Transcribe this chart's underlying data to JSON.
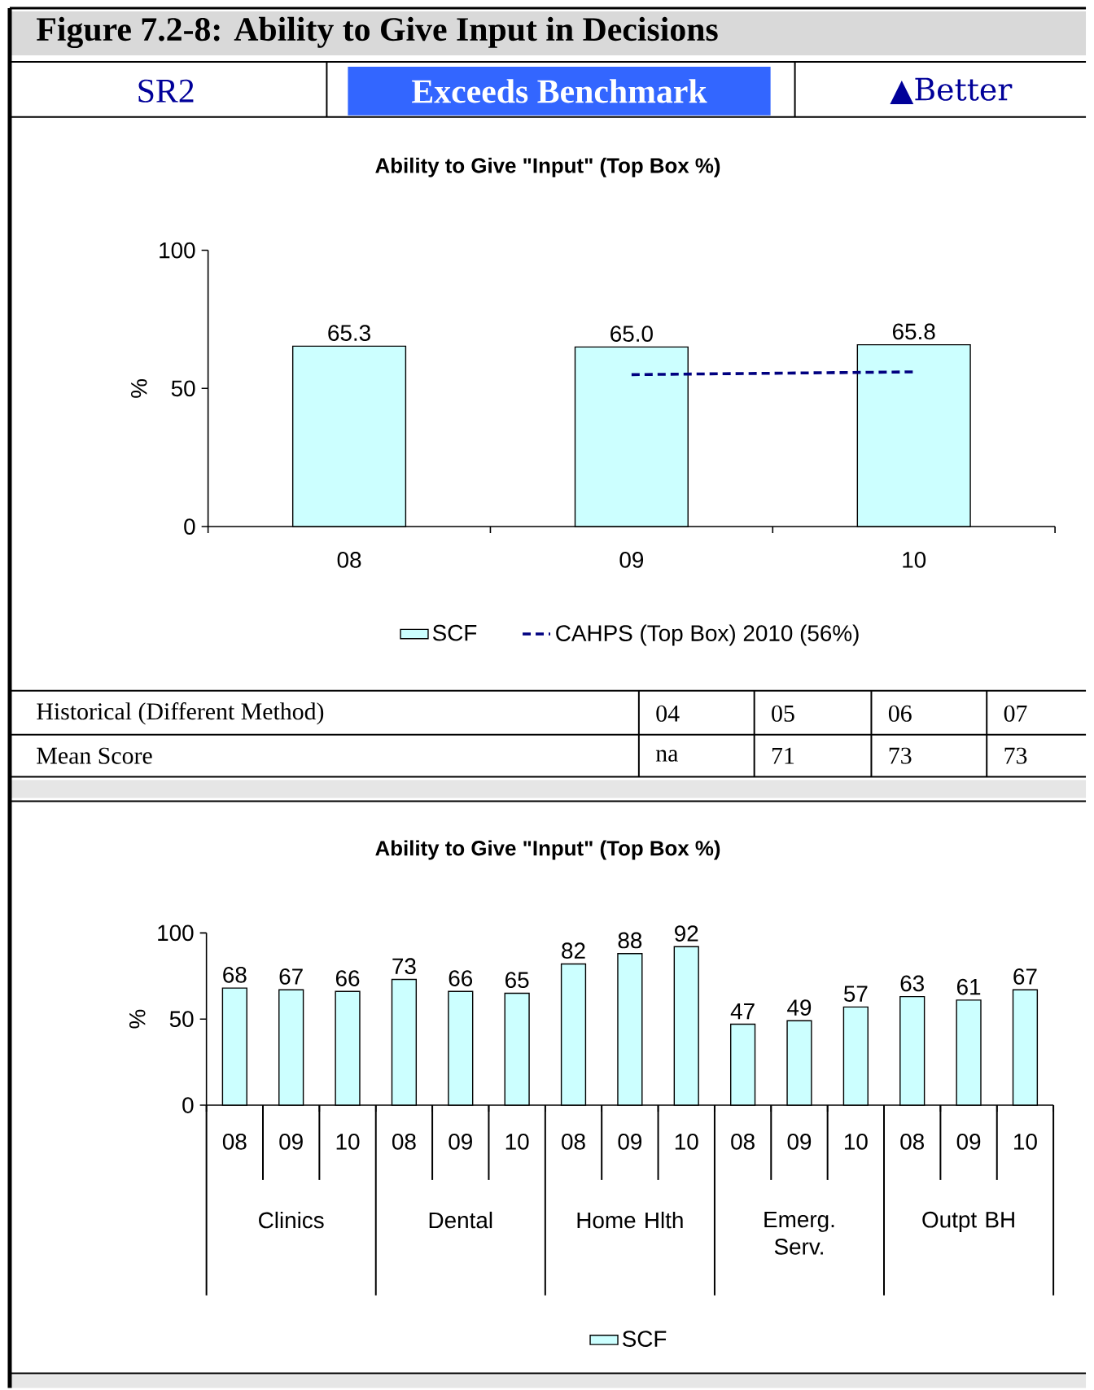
{
  "chart_data": [
    {
      "type": "bar",
      "title": "Ability to Give \"Input\" (Top Box %)",
      "ylabel": "%",
      "categories": [
        "08",
        "09",
        "10"
      ],
      "series": [
        {
          "name": "SCF",
          "color": "#ccffff",
          "values": [
            65.3,
            65.0,
            65.8
          ],
          "value_labels": [
            "65.3",
            "65.0",
            "65.8"
          ]
        },
        {
          "name": "CAHPS (Top Box) 2010 (56%)",
          "type": "line",
          "color": "#000080",
          "line_style": "dashed",
          "values": [
            null,
            55,
            56
          ]
        }
      ],
      "ylim": [
        0,
        100
      ],
      "yticks": [
        0,
        50,
        100
      ],
      "legend": "bottom",
      "annotations": [
        "Figure 7.2-8: Ability to Give Input in Decisions",
        "SR2",
        "Exceeds Benchmark",
        "▲Better",
        "Historical (Different Method)",
        "04",
        "05",
        "06",
        "07",
        "Mean Score",
        "na",
        "71",
        "73",
        "73"
      ]
    },
    {
      "type": "bar",
      "title": "Ability to Give \"Input\" (Top Box %)",
      "ylabel": "%",
      "categories": [
        "08",
        "09",
        "10",
        "08",
        "09",
        "10",
        "08",
        "09",
        "10",
        "08",
        "09",
        "10",
        "08",
        "09",
        "10"
      ],
      "series": [
        {
          "name": "SCF",
          "color": "#ccffff",
          "values": [
            68,
            67,
            66,
            73,
            66,
            65,
            82,
            88,
            92,
            47,
            49,
            57,
            63,
            61,
            67
          ],
          "value_labels": [
            "68",
            "67",
            "66",
            "73",
            "66",
            "65",
            "82",
            "88",
            "92",
            "47",
            "49",
            "57",
            "63",
            "61",
            "67"
          ]
        }
      ],
      "ylim": [
        0,
        100
      ],
      "yticks": [
        0,
        50,
        100
      ],
      "legend": "bottom",
      "annotations": [
        "Clinics",
        "Dental",
        "Home Hlth",
        "Emerg. Serv.",
        "Outpt BH"
      ]
    }
  ]
}
